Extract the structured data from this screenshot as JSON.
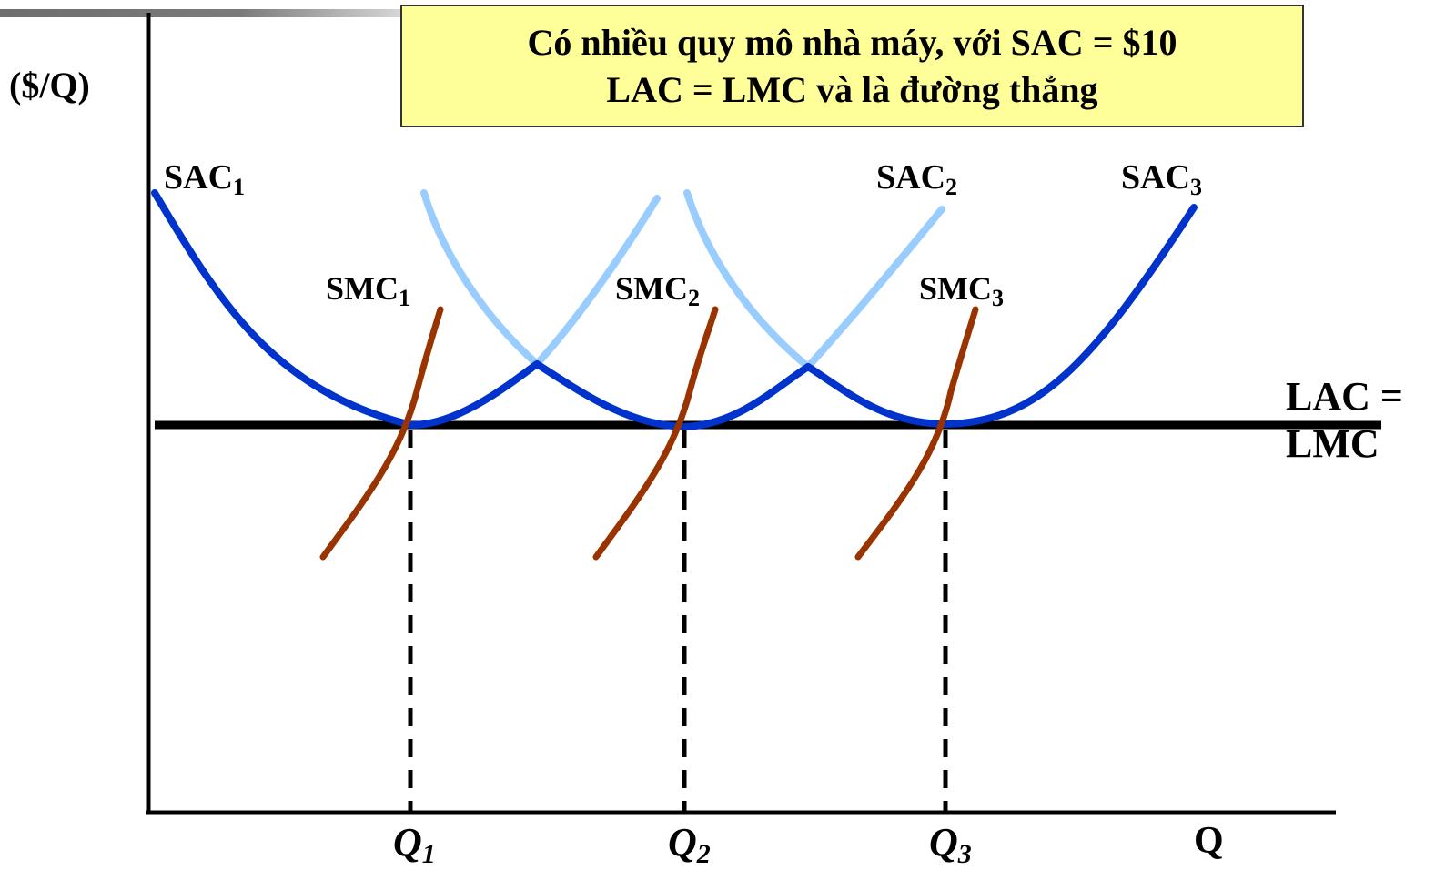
{
  "title": {
    "line1": "Có nhiều quy mô nhà máy, với SAC = $10",
    "line2": "LAC = LMC và là đường thẳng"
  },
  "axes": {
    "y_label": "($/Q)",
    "x_label": "Q"
  },
  "curves": {
    "sac1": {
      "base": "SAC",
      "sub": "1"
    },
    "sac2": {
      "base": "SAC",
      "sub": "2"
    },
    "sac3": {
      "base": "SAC",
      "sub": "3"
    },
    "smc1": {
      "base": "SMC",
      "sub": "1"
    },
    "smc2": {
      "base": "SMC",
      "sub": "2"
    },
    "smc3": {
      "base": "SMC",
      "sub": "3"
    },
    "lac_lmc": {
      "line1": "LAC =",
      "line2": "LMC"
    }
  },
  "quantities": [
    {
      "base": "Q",
      "sub": "1"
    },
    {
      "base": "Q",
      "sub": "2"
    },
    {
      "base": "Q",
      "sub": "3"
    }
  ],
  "colors": {
    "sac_active": "#0033cc",
    "sac_faded": "#99ccff",
    "smc": "#993300",
    "lac": "#000000",
    "title_box": "#ffff99"
  }
}
